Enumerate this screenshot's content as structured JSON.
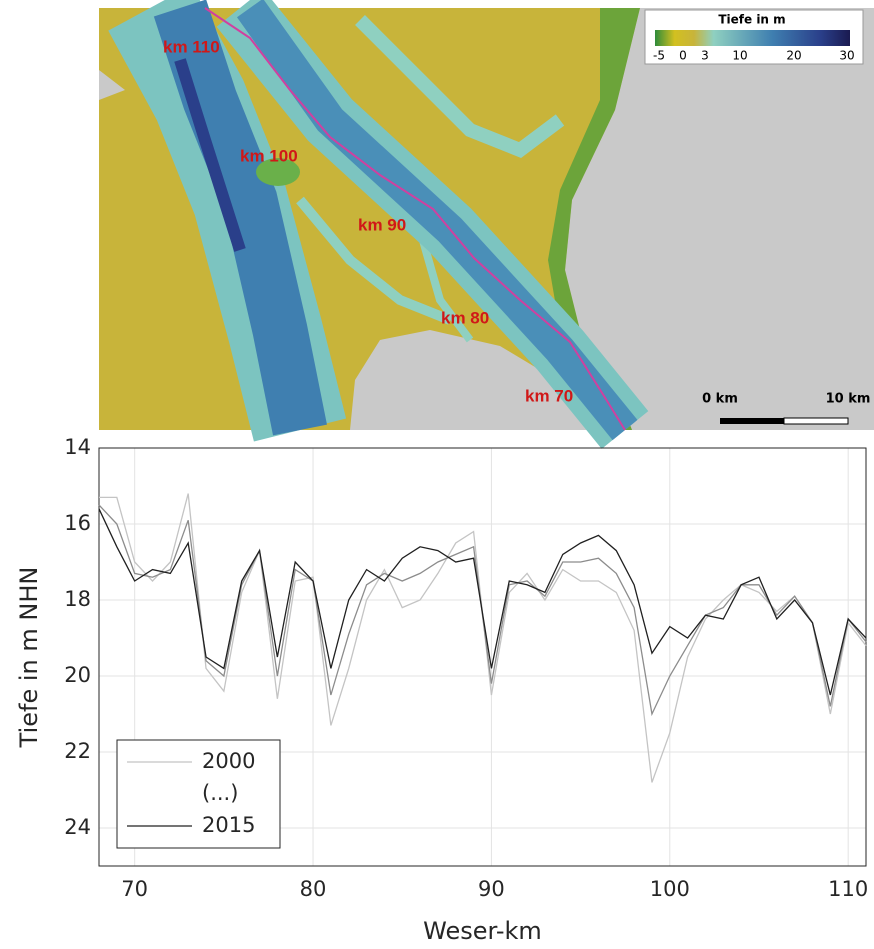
{
  "map": {
    "labels": [
      "km 110",
      "km 100",
      "km 90",
      "km 80",
      "km 70"
    ],
    "legend": {
      "title": "Tiefe in m",
      "ticks": [
        -5,
        0,
        3,
        10,
        20,
        30
      ]
    },
    "scale": [
      "0 km",
      "10 km"
    ]
  },
  "chart_data": {
    "type": "line",
    "x_label": "Weser-km",
    "y_label": "Tiefe in m NHN",
    "x": [
      68,
      69,
      70,
      71,
      72,
      73,
      74,
      75,
      76,
      77,
      78,
      79,
      80,
      81,
      82,
      83,
      84,
      85,
      86,
      87,
      88,
      89,
      90,
      91,
      92,
      93,
      94,
      95,
      96,
      97,
      98,
      99,
      100,
      101,
      102,
      103,
      104,
      105,
      106,
      107,
      108,
      109,
      110,
      111
    ],
    "series": [
      {
        "name": "2000",
        "color": "#c4c4c4",
        "values": [
          15.3,
          15.3,
          17.0,
          17.5,
          17.0,
          15.2,
          19.8,
          20.4,
          17.8,
          16.7,
          20.6,
          17.5,
          17.4,
          21.3,
          19.8,
          18.0,
          17.2,
          18.2,
          18.0,
          17.3,
          16.5,
          16.2,
          20.5,
          17.8,
          17.3,
          18.0,
          17.2,
          17.5,
          17.5,
          17.8,
          18.8,
          22.8,
          21.5,
          19.5,
          18.5,
          18.0,
          17.6,
          17.8,
          18.3,
          17.9,
          18.6,
          21.0,
          18.6,
          19.2
        ]
      },
      {
        "name": "(...)",
        "color": "#8c8c8c",
        "values": [
          15.5,
          16.0,
          17.3,
          17.4,
          17.2,
          15.9,
          19.6,
          20.0,
          17.6,
          16.7,
          20.0,
          17.2,
          17.5,
          20.5,
          18.9,
          17.6,
          17.3,
          17.5,
          17.3,
          17.0,
          16.8,
          16.6,
          20.2,
          17.6,
          17.5,
          17.9,
          17.0,
          17.0,
          16.9,
          17.3,
          18.2,
          21.0,
          20.0,
          19.2,
          18.4,
          18.2,
          17.6,
          17.6,
          18.4,
          17.9,
          18.6,
          20.8,
          18.5,
          19.1
        ]
      },
      {
        "name": "2015",
        "color": "#202020",
        "values": [
          15.6,
          16.6,
          17.5,
          17.2,
          17.3,
          16.5,
          19.5,
          19.8,
          17.5,
          16.7,
          19.5,
          17.0,
          17.5,
          19.8,
          18.0,
          17.2,
          17.5,
          16.9,
          16.6,
          16.7,
          17.0,
          16.9,
          19.8,
          17.5,
          17.6,
          17.8,
          16.8,
          16.5,
          16.3,
          16.7,
          17.6,
          19.4,
          18.7,
          19.0,
          18.4,
          18.5,
          17.6,
          17.4,
          18.5,
          18.0,
          18.6,
          20.5,
          18.5,
          19.0
        ]
      }
    ],
    "xlim": [
      68,
      111
    ],
    "xticks": [
      70,
      80,
      90,
      100,
      110
    ],
    "ylim": [
      14,
      25
    ],
    "yticks": [
      14,
      16,
      18,
      20,
      22,
      24
    ],
    "y_reversed": true,
    "grid": true,
    "legend": "lower left"
  }
}
